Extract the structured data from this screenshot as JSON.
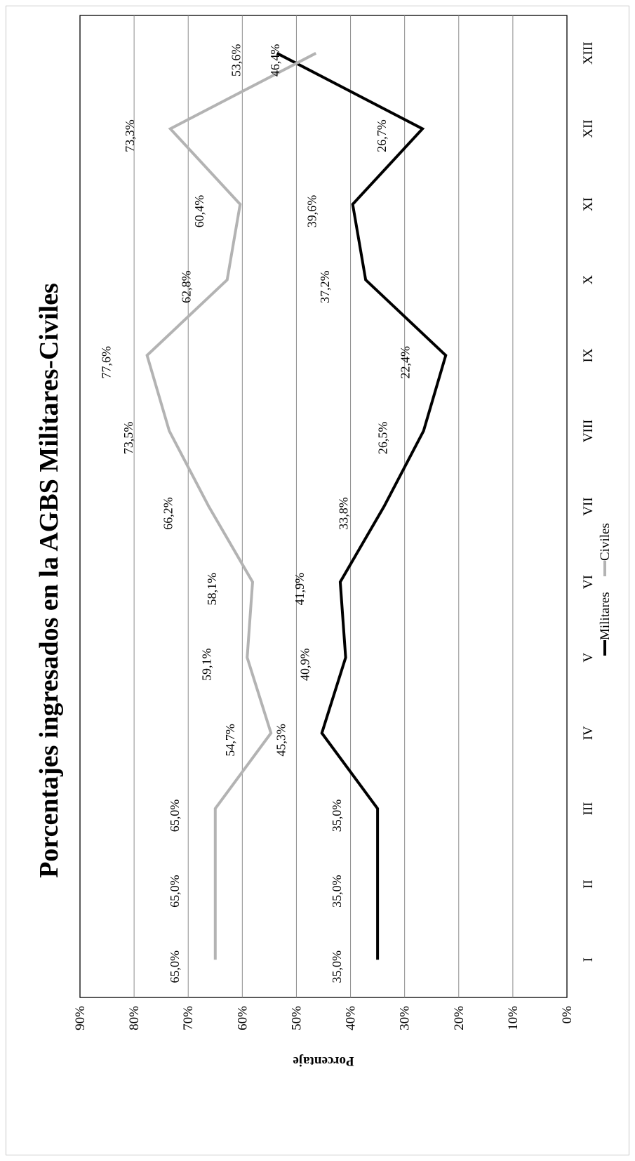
{
  "chart_data": {
    "type": "line",
    "title": "Porcentajes ingresados en la AGBS Militares-Civiles",
    "ylabel": "Porcentaje",
    "xlabel": "",
    "categories": [
      "I",
      "II",
      "III",
      "IV",
      "V",
      "VI",
      "VII",
      "VIII",
      "IX",
      "X",
      "XI",
      "XII",
      "XIII"
    ],
    "ylim": [
      0,
      90
    ],
    "yticks": [
      "0%",
      "10%",
      "20%",
      "30%",
      "40%",
      "50%",
      "60%",
      "70%",
      "80%",
      "90%"
    ],
    "grid": true,
    "legend_position": "bottom",
    "orientation": "rotated 90° counter-clockwise",
    "series": [
      {
        "name": "Militares",
        "color": "#000000",
        "values": [
          35.0,
          35.0,
          35.0,
          45.3,
          40.9,
          41.9,
          33.8,
          26.5,
          22.4,
          37.2,
          39.6,
          26.7,
          53.6
        ],
        "labels": [
          "35,0%",
          "35,0%",
          "35,0%",
          "45,3%",
          "40,9%",
          "41,9%",
          "33,8%",
          "26,5%",
          "22,4%",
          "37,2%",
          "39,6%",
          "26,7%",
          "53,6%"
        ]
      },
      {
        "name": "Civiles",
        "color": "#b3b3b3",
        "values": [
          65.0,
          65.0,
          65.0,
          54.7,
          59.1,
          58.1,
          66.2,
          73.5,
          77.6,
          62.8,
          60.4,
          73.3,
          46.4
        ],
        "labels": [
          "65,0%",
          "65,0%",
          "65,0%",
          "54,7%",
          "59,1%",
          "58,1%",
          "66,2%",
          "73,5%",
          "77,6%",
          "62,8%",
          "60,4%",
          "73,3%",
          "46,4%"
        ]
      }
    ]
  }
}
